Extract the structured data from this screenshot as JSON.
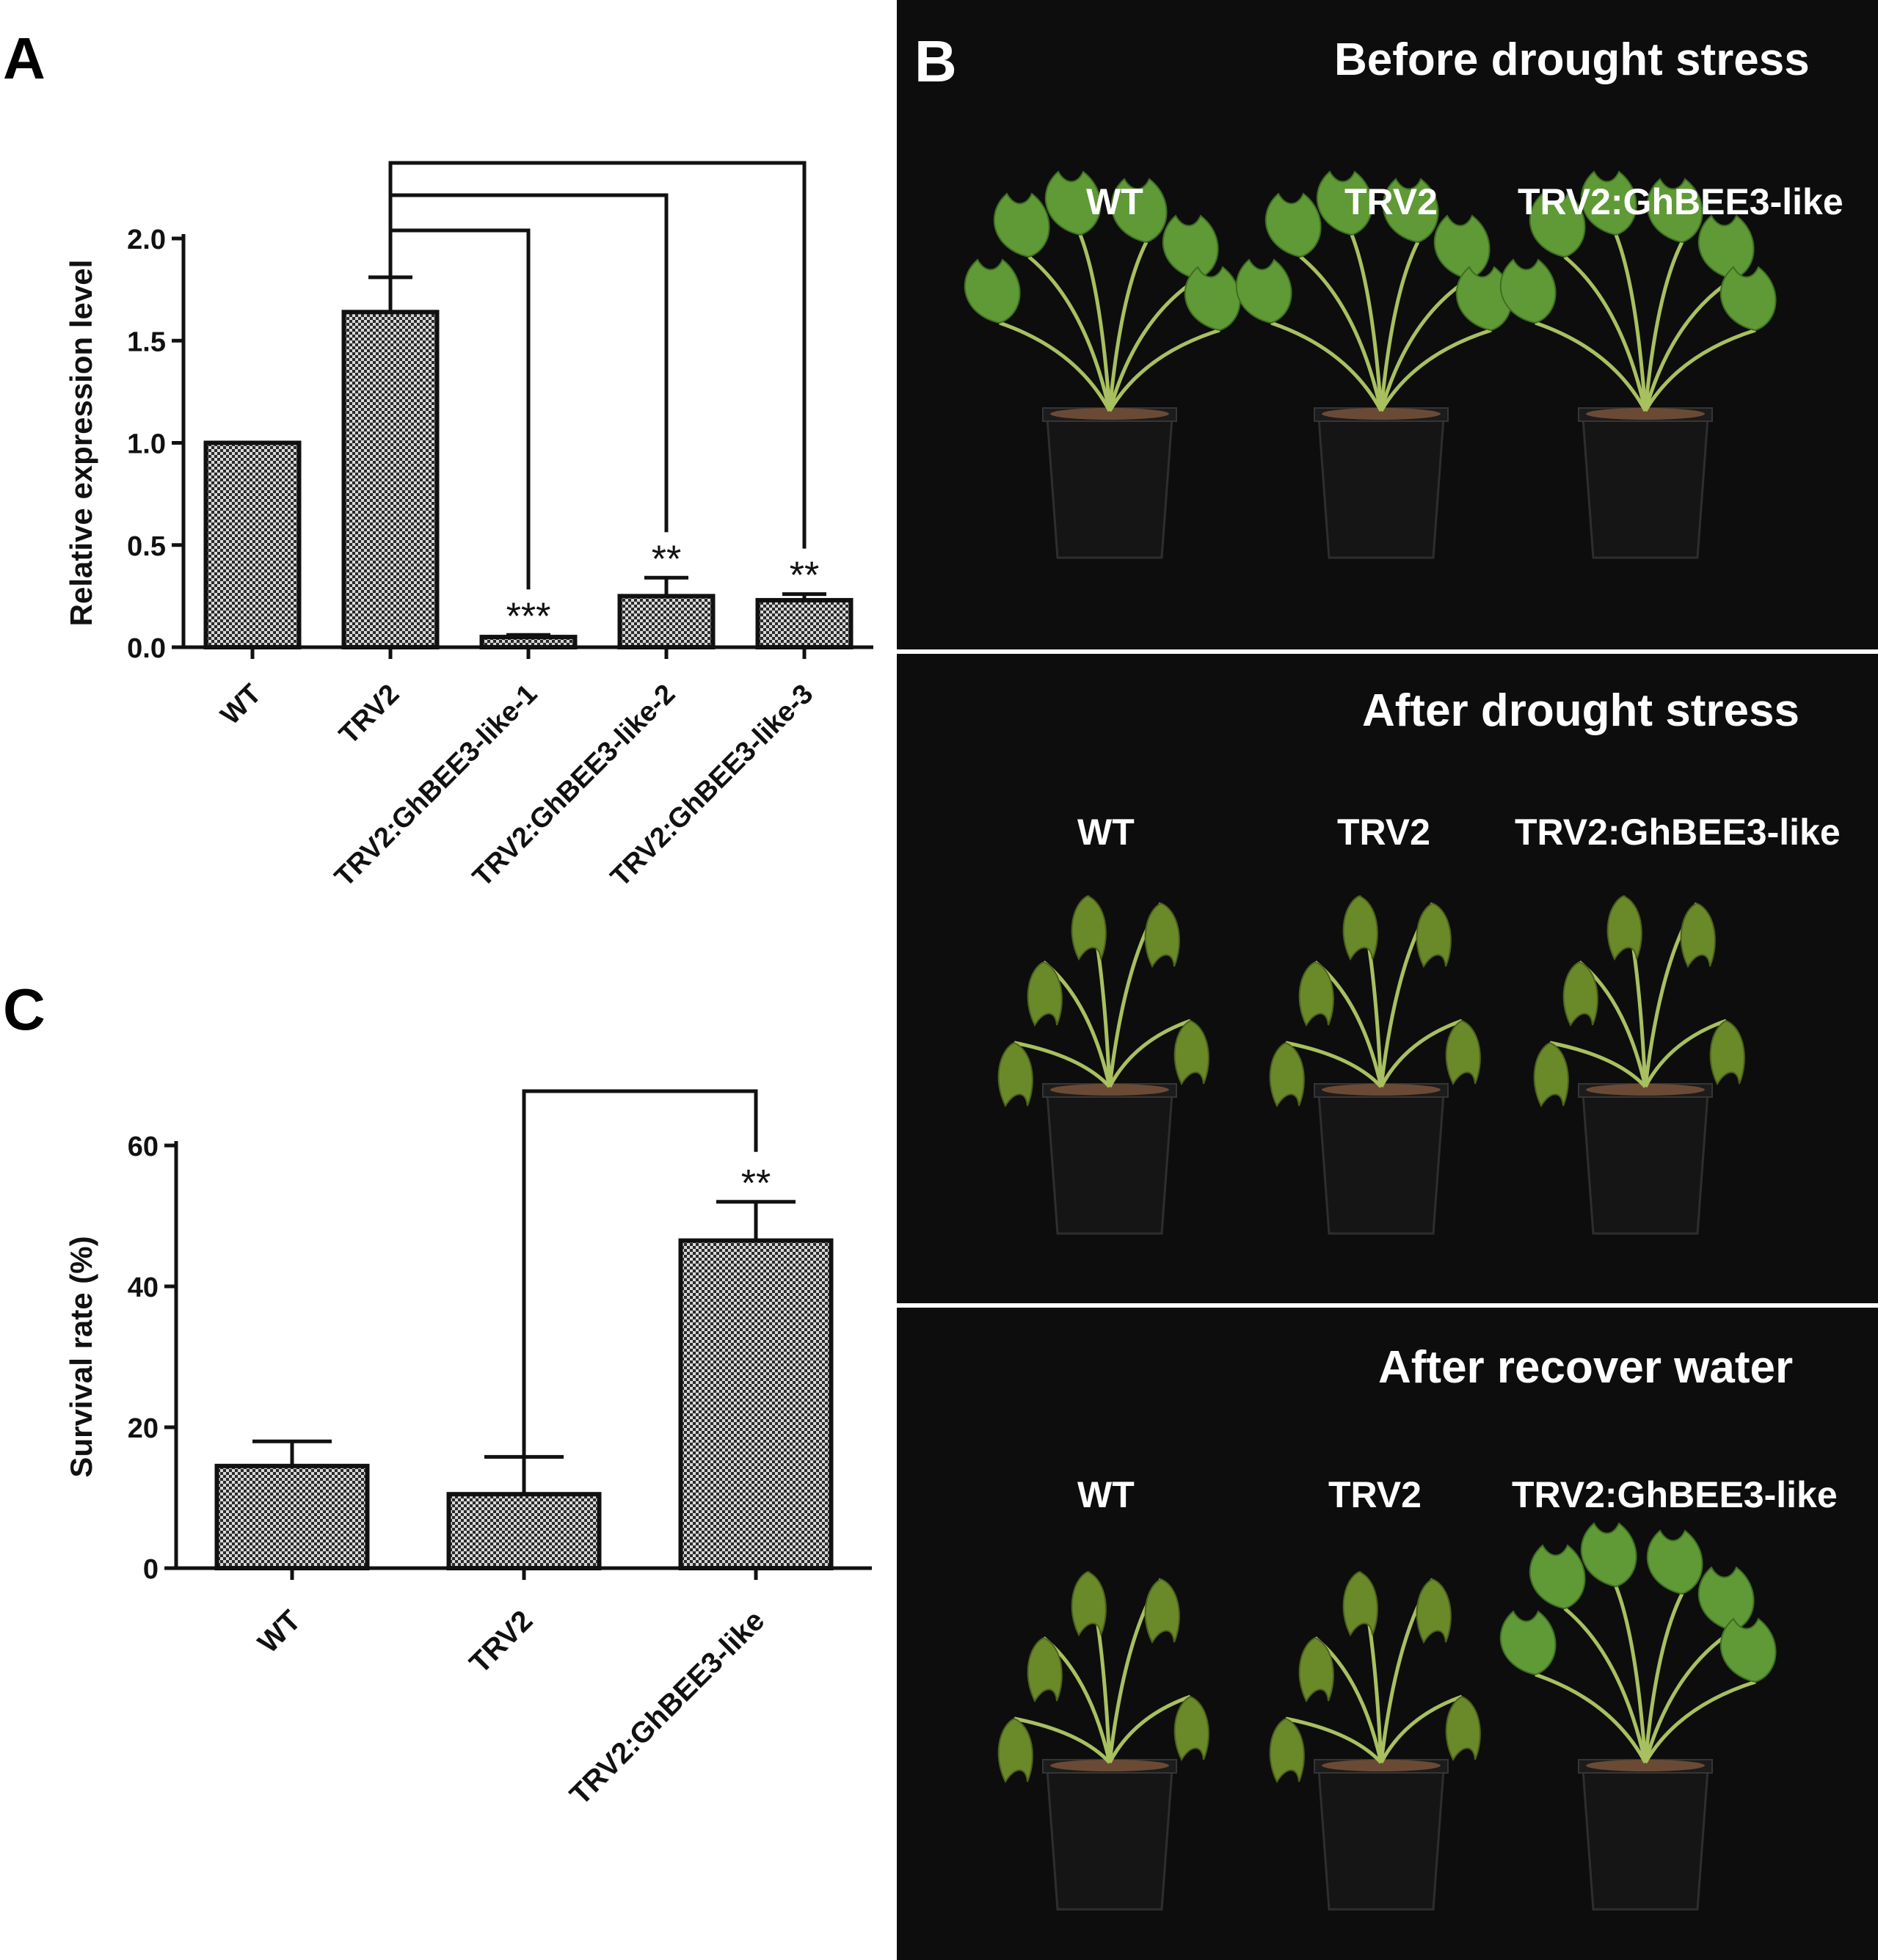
{
  "panels": {
    "a": "A",
    "b": "B",
    "c": "C"
  },
  "chart_data": [
    {
      "type": "bar",
      "panel": "A",
      "categories": [
        "WT",
        "TRV2",
        "TRV2:GhBEE3-like-1",
        "TRV2:GhBEE3-like-2",
        "TRV2:GhBEE3-like-3"
      ],
      "values": [
        1.0,
        1.64,
        0.05,
        0.25,
        0.23
      ],
      "errors": [
        0.0,
        0.17,
        0.01,
        0.09,
        0.03
      ],
      "annotations": [
        "",
        "",
        "***",
        "**",
        "**"
      ],
      "comparisons": [
        {
          "from": "TRV2",
          "to": "TRV2:GhBEE3-like-1",
          "label": "***"
        },
        {
          "from": "TRV2",
          "to": "TRV2:GhBEE3-like-2",
          "label": "**"
        },
        {
          "from": "TRV2",
          "to": "TRV2:GhBEE3-like-3",
          "label": "**"
        }
      ],
      "ylabel": "Relative expression level",
      "yticks": [
        "0.0",
        "0.5",
        "1.0",
        "1.5",
        "2.0"
      ],
      "ylim": [
        0,
        2.0
      ],
      "bar_pattern": "checkered"
    },
    {
      "type": "bar",
      "panel": "C",
      "categories": [
        "WT",
        "TRV2",
        "TRV2:GhBEE3-like"
      ],
      "values": [
        14.5,
        10.5,
        46.5
      ],
      "errors": [
        3.5,
        5.3,
        5.5
      ],
      "annotations": [
        "",
        "",
        "**"
      ],
      "comparisons": [
        {
          "from": "TRV2",
          "to": "TRV2:GhBEE3-like",
          "label": "**"
        }
      ],
      "ylabel": "Survival rate (%)",
      "yticks": [
        "0",
        "20",
        "40",
        "60"
      ],
      "ylim": [
        0,
        60
      ],
      "bar_pattern": "checkered"
    }
  ],
  "photos": [
    {
      "title": "Before drought stress",
      "labels": [
        "WT",
        "TRV2",
        "TRV2:GhBEE3-like"
      ],
      "state": "healthy"
    },
    {
      "title": "After drought stress",
      "labels": [
        "WT",
        "TRV2",
        "TRV2:GhBEE3-like"
      ],
      "state": "wilted"
    },
    {
      "title": "After recover water",
      "labels": [
        "WT",
        "TRV2",
        "TRV2:GhBEE3-like"
      ],
      "state": "recovered"
    }
  ],
  "colors": {
    "bar_dark": "#2a2a2a",
    "bar_light": "#d8d8d8",
    "photo_bg": "#0d0d0d",
    "pot": "#151515",
    "soil": "#6b4a35",
    "leaf_healthy": "#5f9a36",
    "leaf_wilted": "#6a8a2a",
    "stem": "#a8c060"
  }
}
